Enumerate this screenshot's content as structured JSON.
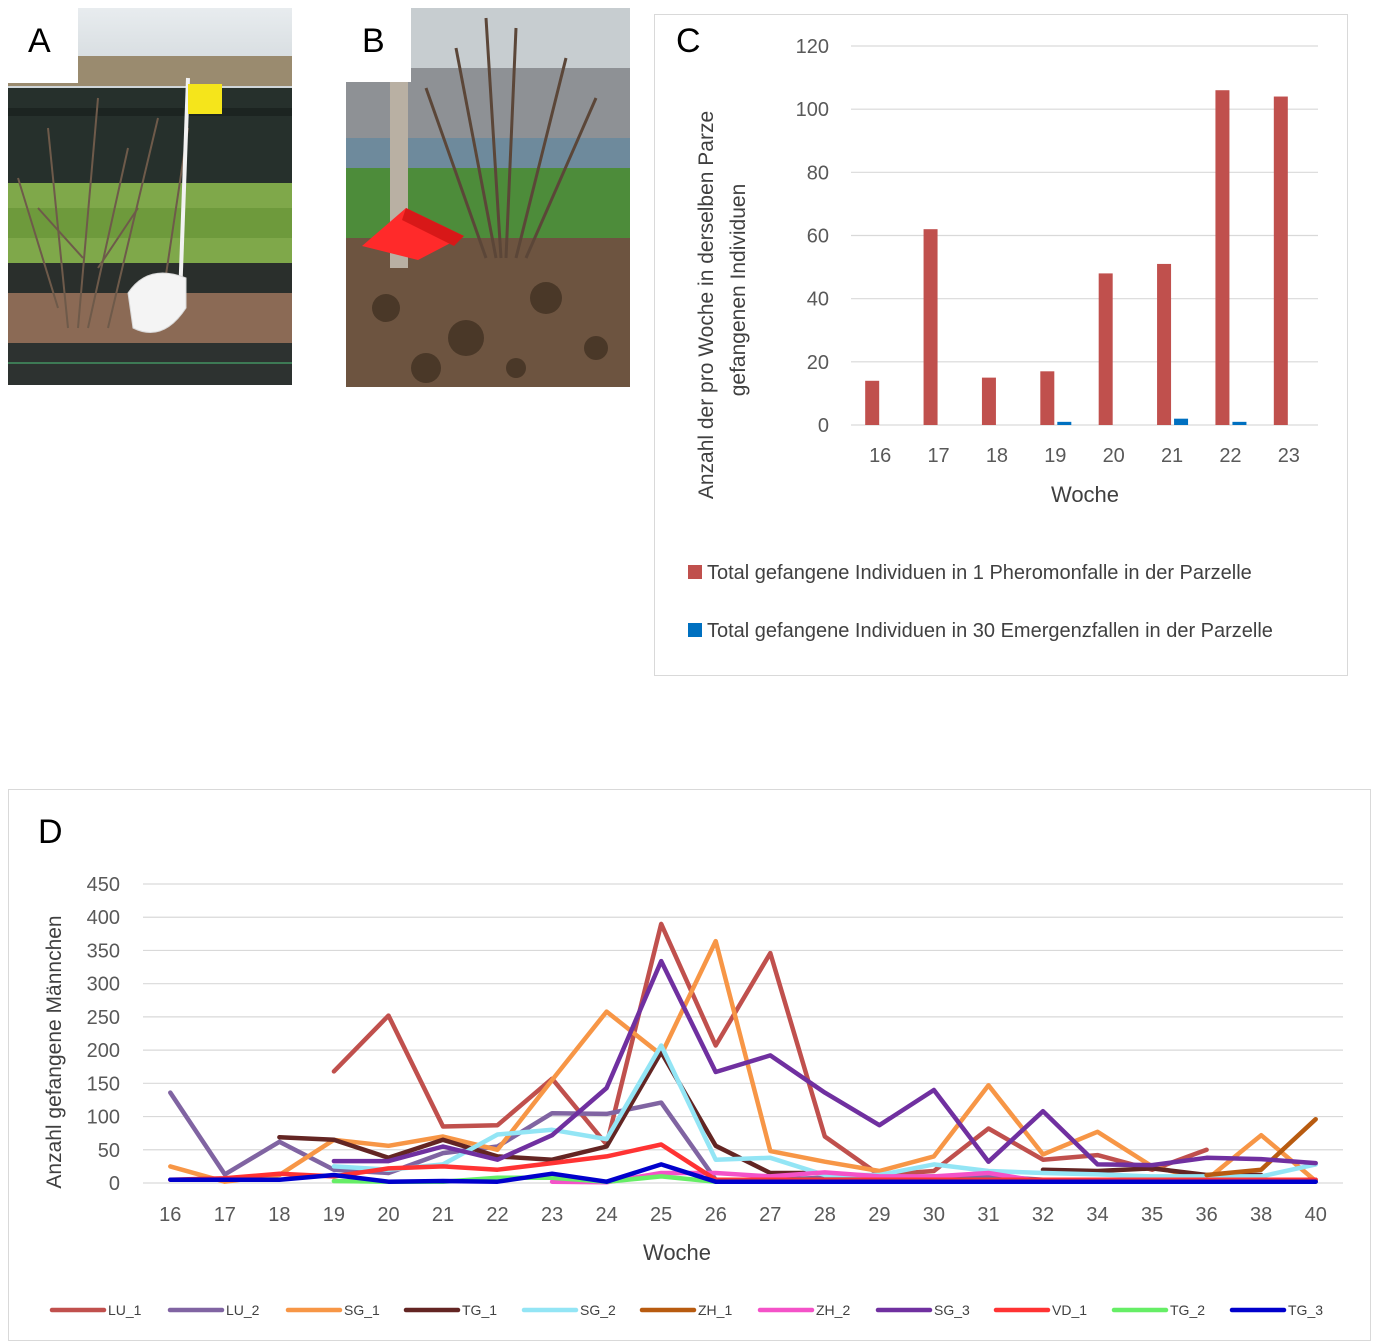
{
  "panels": {
    "a": "A",
    "b": "B",
    "c": "C",
    "d": "D"
  },
  "chart_c": {
    "type": "bar",
    "categories": [
      "16",
      "17",
      "18",
      "19",
      "20",
      "21",
      "22",
      "23"
    ],
    "series": [
      {
        "name": "Total gefangene Individuen in 1 Pheromonfalle in der Parzelle",
        "color": "#c0504d",
        "values": [
          14,
          62,
          15,
          17,
          48,
          51,
          106,
          104
        ]
      },
      {
        "name": "Total gefangene Individuen in 30 Emergenzfallen in der Parzelle",
        "color": "#0070c0",
        "values": [
          0,
          0,
          0,
          1,
          0,
          2,
          1,
          0
        ]
      }
    ],
    "xlabel": "Woche",
    "ylabel_line1": "Anzahl der pro Woche in derselben Parze",
    "ylabel_line2": "gefangenen Individuen",
    "ylim": [
      0,
      120
    ],
    "yticks": [
      "0",
      "20",
      "40",
      "60",
      "80",
      "100",
      "120"
    ],
    "grid": true,
    "legend_position": "bottom"
  },
  "chart_data": {
    "type": "line",
    "categories": [
      "16",
      "17",
      "18",
      "19",
      "20",
      "21",
      "22",
      "23",
      "24",
      "25",
      "26",
      "27",
      "28",
      "29",
      "30",
      "31",
      "32",
      "34",
      "35",
      "36",
      "38",
      "40"
    ],
    "xlabel": "Woche",
    "ylabel": "Anzahl gefangene Männchen",
    "ylim": [
      0,
      450
    ],
    "yticks": [
      "0",
      "50",
      "100",
      "150",
      "200",
      "250",
      "300",
      "350",
      "400",
      "450"
    ],
    "grid": true,
    "legend_position": "bottom",
    "series": [
      {
        "name": "LU_1",
        "color": "#c0504d",
        "values": [
          null,
          null,
          null,
          168,
          252,
          85,
          87,
          157,
          58,
          390,
          207,
          346,
          70,
          12,
          18,
          82,
          35,
          42,
          20,
          50,
          null,
          null
        ]
      },
      {
        "name": "LU_2",
        "color": "#8064a2",
        "values": [
          136,
          13,
          62,
          20,
          15,
          45,
          55,
          105,
          104,
          121,
          5,
          5,
          8,
          8,
          10,
          10,
          5,
          5,
          5,
          5,
          5,
          5
        ]
      },
      {
        "name": "SG_1",
        "color": "#f79646",
        "values": [
          25,
          2,
          12,
          65,
          56,
          70,
          50,
          155,
          258,
          193,
          364,
          48,
          32,
          18,
          40,
          147,
          43,
          77,
          25,
          5,
          72,
          3
        ]
      },
      {
        "name": "TG_1",
        "color": "#632523",
        "values": [
          null,
          null,
          69,
          65,
          38,
          65,
          40,
          35,
          55,
          197,
          56,
          15,
          15,
          null,
          null,
          null,
          20,
          18,
          22,
          12,
          12,
          null
        ]
      },
      {
        "name": "SG_2",
        "color": "#93e5f5",
        "values": [
          null,
          null,
          null,
          25,
          20,
          28,
          73,
          80,
          66,
          207,
          35,
          38,
          12,
          12,
          28,
          18,
          15,
          13,
          10,
          10,
          10,
          28
        ]
      },
      {
        "name": "ZH_1",
        "color": "#b85b10",
        "values": [
          null,
          null,
          null,
          null,
          null,
          null,
          null,
          null,
          null,
          null,
          null,
          null,
          null,
          null,
          null,
          null,
          null,
          null,
          null,
          12,
          20,
          96
        ]
      },
      {
        "name": "ZH_2",
        "color": "#f452c8",
        "values": [
          null,
          null,
          null,
          null,
          null,
          null,
          null,
          2,
          1,
          15,
          15,
          10,
          16,
          10,
          10,
          15,
          2,
          2,
          2,
          2,
          2,
          2
        ]
      },
      {
        "name": "SG_3",
        "color": "#7030a0",
        "values": [
          null,
          null,
          null,
          33,
          33,
          55,
          35,
          72,
          143,
          334,
          167,
          192,
          136,
          87,
          140,
          32,
          108,
          28,
          27,
          38,
          36,
          30
        ]
      },
      {
        "name": "VD_1",
        "color": "#ff3333",
        "values": [
          5,
          7,
          14,
          10,
          22,
          25,
          20,
          30,
          40,
          58,
          5,
          5,
          5,
          5,
          5,
          5,
          5,
          5,
          5,
          5,
          5,
          5
        ]
      },
      {
        "name": "TG_2",
        "color": "#66ee66",
        "values": [
          null,
          null,
          null,
          3,
          2,
          2,
          8,
          8,
          2,
          10,
          2,
          2,
          2,
          2,
          2,
          2,
          2,
          2,
          2,
          2,
          2,
          2
        ]
      },
      {
        "name": "TG_3",
        "color": "#0000cc",
        "values": [
          5,
          5,
          5,
          12,
          2,
          3,
          2,
          14,
          2,
          28,
          2,
          2,
          2,
          2,
          2,
          2,
          2,
          2,
          2,
          2,
          2,
          2
        ]
      }
    ]
  }
}
